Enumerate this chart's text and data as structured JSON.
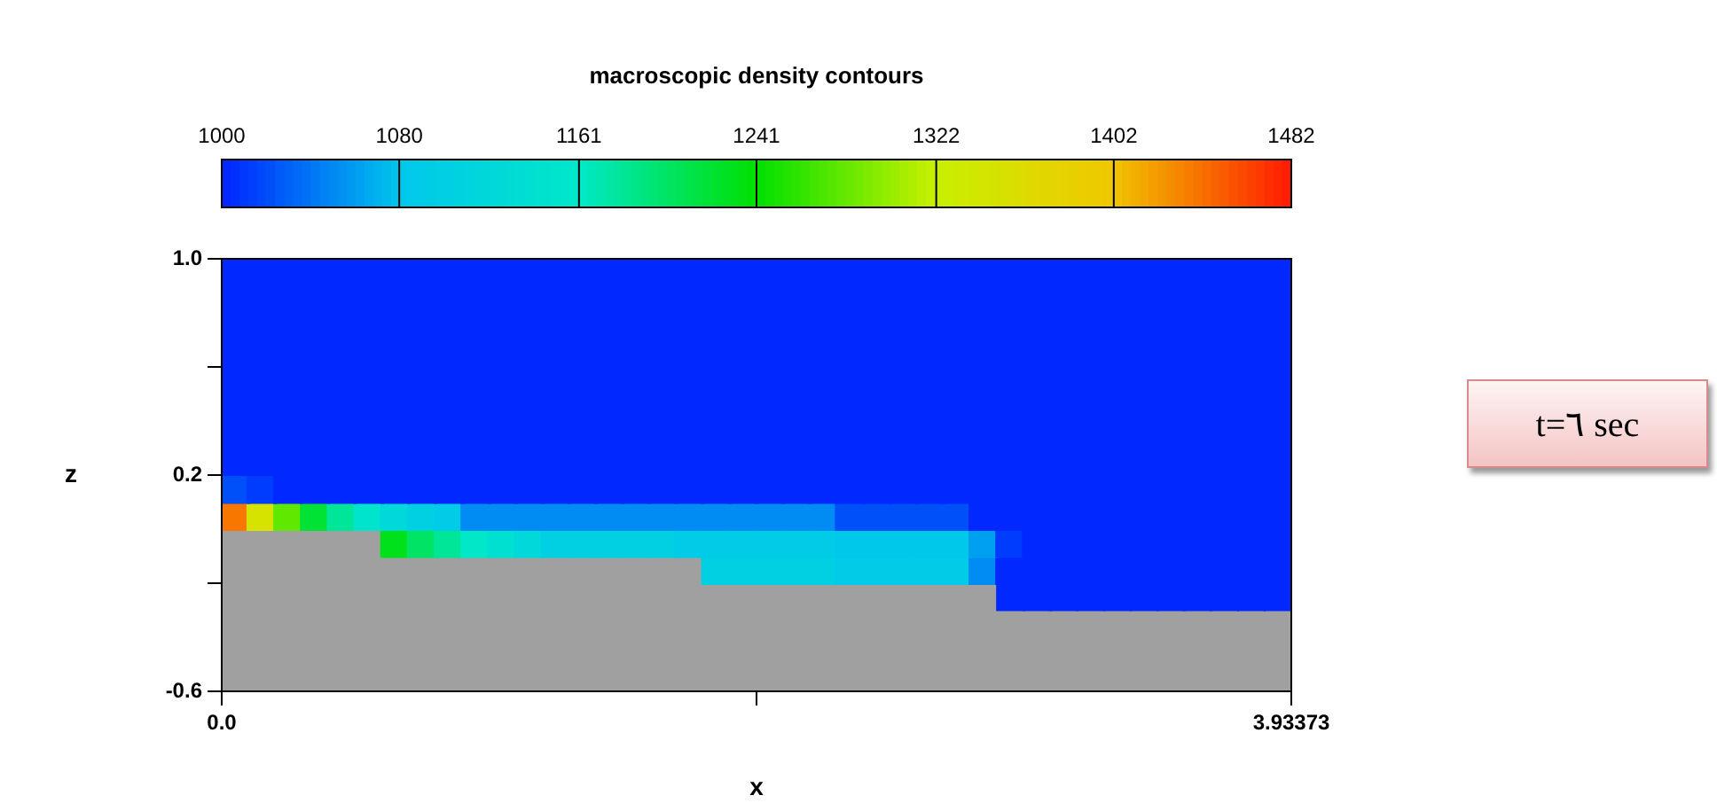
{
  "chart_data": {
    "type": "scatter",
    "title": "macroscopic density contours",
    "xlabel": "x",
    "ylabel": "z",
    "marker": "square",
    "x": [
      0.0492,
      0.1475,
      0.2459,
      0.3442,
      0.4426,
      0.5409,
      0.6393,
      0.7376,
      0.836,
      0.9343,
      1.0326,
      1.131,
      1.2293,
      1.3277,
      1.426,
      1.5244,
      1.6227,
      1.7211,
      1.8194,
      1.9178,
      2.0161,
      2.1145,
      2.2128,
      2.3112,
      2.4095,
      2.5079,
      2.6062,
      2.7046,
      2.8029,
      2.9013,
      2.9996,
      3.098,
      3.1963,
      3.2947,
      3.393,
      3.4914,
      3.5897,
      3.688,
      3.7864,
      3.8847
    ],
    "series": [
      {
        "values": [
          0.95,
          0.95,
          0.95,
          0.95,
          0.95,
          0.95,
          0.95,
          0.95,
          0.95,
          0.95,
          0.95,
          0.95,
          0.95,
          0.95,
          0.95,
          0.95,
          0.95,
          0.95,
          0.95,
          0.95,
          0.95,
          0.95,
          0.95,
          0.95,
          0.95,
          0.95,
          0.95,
          0.95,
          0.95,
          0.95,
          0.95,
          0.95,
          0.95,
          0.95,
          0.95,
          0.95,
          0.95,
          0.95,
          0.95,
          0.95
        ],
        "cvalues": [
          1000,
          1000,
          1000,
          1000,
          1000,
          1000,
          1000,
          1000,
          1000,
          1000,
          1000,
          1000,
          1000,
          1000,
          1000,
          1000,
          1000,
          1000,
          1000,
          1000,
          1000,
          1000,
          1000,
          1000,
          1000,
          1000,
          1000,
          1000,
          1000,
          1000,
          1000,
          1000,
          1000,
          1000,
          1000,
          1000,
          1000,
          1000,
          1000,
          1000
        ]
      },
      {
        "values": [
          0.85,
          0.85,
          0.85,
          0.85,
          0.85,
          0.85,
          0.85,
          0.85,
          0.85,
          0.85,
          0.85,
          0.85,
          0.85,
          0.85,
          0.85,
          0.85,
          0.85,
          0.85,
          0.85,
          0.85,
          0.85,
          0.85,
          0.85,
          0.85,
          0.85,
          0.85,
          0.85,
          0.85,
          0.85,
          0.85,
          0.85,
          0.85,
          0.85,
          0.85,
          0.85,
          0.85,
          0.85,
          0.85,
          0.85,
          0.85
        ],
        "cvalues": [
          1000,
          1000,
          1000,
          1000,
          1000,
          1000,
          1000,
          1000,
          1000,
          1000,
          1000,
          1000,
          1000,
          1000,
          1000,
          1000,
          1000,
          1000,
          1000,
          1000,
          1000,
          1000,
          1000,
          1000,
          1000,
          1000,
          1000,
          1000,
          1000,
          1000,
          1000,
          1000,
          1000,
          1000,
          1000,
          1000,
          1000,
          1000,
          1000,
          1000
        ]
      },
      {
        "values": [
          0.75,
          0.75,
          0.75,
          0.75,
          0.75,
          0.75,
          0.75,
          0.75,
          0.75,
          0.75,
          0.75,
          0.75,
          0.75,
          0.75,
          0.75,
          0.75,
          0.75,
          0.75,
          0.75,
          0.75,
          0.75,
          0.75,
          0.75,
          0.75,
          0.75,
          0.75,
          0.75,
          0.75,
          0.75,
          0.75,
          0.75,
          0.75,
          0.75,
          0.75,
          0.75,
          0.75,
          0.75,
          0.75,
          0.75,
          0.75
        ],
        "cvalues": [
          1000,
          1000,
          1000,
          1000,
          1000,
          1000,
          1000,
          1000,
          1000,
          1000,
          1000,
          1000,
          1000,
          1000,
          1000,
          1000,
          1000,
          1000,
          1000,
          1000,
          1000,
          1000,
          1000,
          1000,
          1000,
          1000,
          1000,
          1000,
          1000,
          1000,
          1000,
          1000,
          1000,
          1000,
          1000,
          1000,
          1000,
          1000,
          1000,
          1000
        ]
      },
      {
        "values": [
          0.65,
          0.65,
          0.65,
          0.65,
          0.65,
          0.65,
          0.65,
          0.65,
          0.65,
          0.65,
          0.65,
          0.65,
          0.65,
          0.65,
          0.65,
          0.65,
          0.65,
          0.65,
          0.65,
          0.65,
          0.65,
          0.65,
          0.65,
          0.65,
          0.65,
          0.65,
          0.65,
          0.65,
          0.65,
          0.65,
          0.65,
          0.65,
          0.65,
          0.65,
          0.65,
          0.65,
          0.65,
          0.65,
          0.65,
          0.65
        ],
        "cvalues": [
          1000,
          1000,
          1000,
          1000,
          1000,
          1000,
          1000,
          1000,
          1000,
          1000,
          1000,
          1000,
          1000,
          1000,
          1000,
          1000,
          1000,
          1000,
          1000,
          1000,
          1000,
          1000,
          1000,
          1000,
          1000,
          1000,
          1000,
          1000,
          1000,
          1000,
          1000,
          1000,
          1000,
          1000,
          1000,
          1000,
          1000,
          1000,
          1000,
          1000
        ]
      },
      {
        "values": [
          0.55,
          0.55,
          0.55,
          0.55,
          0.55,
          0.55,
          0.55,
          0.55,
          0.55,
          0.55,
          0.55,
          0.55,
          0.55,
          0.55,
          0.55,
          0.55,
          0.55,
          0.55,
          0.55,
          0.55,
          0.55,
          0.55,
          0.55,
          0.55,
          0.55,
          0.55,
          0.55,
          0.55,
          0.55,
          0.55,
          0.55,
          0.55,
          0.55,
          0.55,
          0.55,
          0.55,
          0.55,
          0.55,
          0.55,
          0.55
        ],
        "cvalues": [
          1000,
          1000,
          1000,
          1000,
          1000,
          1000,
          1000,
          1000,
          1000,
          1000,
          1000,
          1000,
          1000,
          1000,
          1000,
          1000,
          1000,
          1000,
          1000,
          1000,
          1000,
          1000,
          1000,
          1000,
          1000,
          1000,
          1000,
          1000,
          1000,
          1000,
          1000,
          1000,
          1000,
          1000,
          1000,
          1000,
          1000,
          1000,
          1000,
          1000
        ]
      },
      {
        "values": [
          0.45,
          0.45,
          0.45,
          0.45,
          0.45,
          0.45,
          0.45,
          0.45,
          0.45,
          0.45,
          0.45,
          0.45,
          0.45,
          0.45,
          0.45,
          0.45,
          0.45,
          0.45,
          0.45,
          0.45,
          0.45,
          0.45,
          0.45,
          0.45,
          0.45,
          0.45,
          0.45,
          0.45,
          0.45,
          0.45,
          0.45,
          0.45,
          0.45,
          0.45,
          0.45,
          0.45,
          0.45,
          0.45,
          0.45,
          0.45
        ],
        "cvalues": [
          1000,
          1000,
          1000,
          1000,
          1000,
          1000,
          1000,
          1000,
          1000,
          1000,
          1000,
          1000,
          1000,
          1000,
          1000,
          1000,
          1000,
          1000,
          1000,
          1000,
          1000,
          1000,
          1000,
          1000,
          1000,
          1000,
          1000,
          1000,
          1000,
          1000,
          1000,
          1000,
          1000,
          1000,
          1000,
          1000,
          1000,
          1000,
          1000,
          1000
        ]
      },
      {
        "values": [
          0.35,
          0.35,
          0.35,
          0.35,
          0.35,
          0.35,
          0.35,
          0.35,
          0.35,
          0.35,
          0.35,
          0.35,
          0.35,
          0.35,
          0.35,
          0.35,
          0.35,
          0.35,
          0.35,
          0.35,
          0.35,
          0.35,
          0.35,
          0.35,
          0.35,
          0.35,
          0.35,
          0.35,
          0.35,
          0.35,
          0.35,
          0.35,
          0.35,
          0.35,
          0.35,
          0.35,
          0.35,
          0.35,
          0.35,
          0.35
        ],
        "cvalues": [
          1000,
          1000,
          1000,
          1000,
          1000,
          1000,
          1000,
          1000,
          1000,
          1000,
          1000,
          1000,
          1000,
          1000,
          1000,
          1000,
          1000,
          1000,
          1000,
          1000,
          1000,
          1000,
          1000,
          1000,
          1000,
          1000,
          1000,
          1000,
          1000,
          1000,
          1000,
          1000,
          1000,
          1000,
          1000,
          1000,
          1000,
          1000,
          1000,
          1000
        ]
      },
      {
        "values": [
          0.25,
          0.25,
          0.25,
          0.25,
          0.25,
          0.25,
          0.25,
          0.25,
          0.25,
          0.25,
          0.25,
          0.25,
          0.25,
          0.25,
          0.25,
          0.25,
          0.25,
          0.25,
          0.25,
          0.25,
          0.25,
          0.25,
          0.25,
          0.25,
          0.25,
          0.25,
          0.25,
          0.25,
          0.25,
          0.25,
          0.25,
          0.25,
          0.25,
          0.25,
          0.25,
          0.25,
          0.25,
          0.25,
          0.25,
          0.25
        ],
        "cvalues": [
          1000,
          1000,
          1000,
          1000,
          1000,
          1000,
          1000,
          1000,
          1000,
          1000,
          1000,
          1000,
          1000,
          1000,
          1000,
          1000,
          1000,
          1000,
          1000,
          1000,
          1000,
          1000,
          1000,
          1000,
          1000,
          1000,
          1000,
          1000,
          1000,
          1000,
          1000,
          1000,
          1000,
          1000,
          1000,
          1000,
          1000,
          1000,
          1000,
          1000
        ]
      },
      {
        "values": [
          0.15,
          0.15,
          0.15,
          0.15,
          0.15,
          0.15,
          0.15,
          0.15,
          0.15,
          0.15,
          0.15,
          0.15,
          0.15,
          0.15,
          0.15,
          0.15,
          0.15,
          0.15,
          0.15,
          0.15,
          0.15,
          0.15,
          0.15,
          0.15,
          0.15,
          0.15,
          0.15,
          0.15,
          0.15,
          0.15,
          0.15,
          0.15,
          0.15,
          0.15,
          0.15,
          0.15,
          0.15,
          0.15,
          0.15,
          0.15
        ],
        "colors": [
          "#0050fa",
          "#003cfd",
          "#0028ff",
          "#0028ff",
          "#0028ff",
          "#0028ff",
          "#0028ff",
          "#0028ff",
          "#0028ff",
          "#0028ff",
          "#0028ff",
          "#0028ff",
          "#0028ff",
          "#0028ff",
          "#0028ff",
          "#0028ff",
          "#0028ff",
          "#0028ff",
          "#0028ff",
          "#0028ff",
          "#0028ff",
          "#0028ff",
          "#0028ff",
          "#0028ff",
          "#0028ff",
          "#0028ff",
          "#0028ff",
          "#0028ff",
          "#0028ff",
          "#0028ff",
          "#0028ff",
          "#0028ff",
          "#0028ff",
          "#0028ff",
          "#0028ff",
          "#0028ff",
          "#0028ff",
          "#0028ff",
          "#0028ff",
          "#0028ff"
        ],
        "cvalues": [
          1020,
          1010,
          1000,
          1000,
          1000,
          1000,
          1000,
          1000,
          1000,
          1000,
          1000,
          1000,
          1000,
          1000,
          1000,
          1000,
          1000,
          1000,
          1000,
          1000,
          1000,
          1000,
          1000,
          1000,
          1000,
          1000,
          1000,
          1000,
          1000,
          1000,
          1000,
          1000,
          1000,
          1000,
          1000,
          1000,
          1000,
          1000,
          1000,
          1000
        ]
      },
      {
        "values": [
          0.05,
          0.05,
          0.05,
          0.05,
          0.05,
          0.05,
          0.05,
          0.05,
          0.05,
          0.05,
          0.05,
          0.05,
          0.05,
          0.05,
          0.05,
          0.05,
          0.05,
          0.05,
          0.05,
          0.05,
          0.05,
          0.05,
          0.05,
          0.05,
          0.05,
          0.05,
          0.05,
          0.05,
          0.05,
          0.05,
          0.05,
          0.05,
          0.05,
          0.05,
          0.05,
          0.05,
          0.05,
          0.05,
          0.05,
          0.05
        ],
        "colors": [
          "#f77700",
          "#d6e200",
          "#61e800",
          "#00e234",
          "#00e698",
          "#00e4cd",
          "#00d8da",
          "#00d0e2",
          "#00cce7",
          "#008cf3",
          "#008cf3",
          "#008cf3",
          "#008cf3",
          "#008cf3",
          "#008cf3",
          "#008cf3",
          "#008cf3",
          "#008cf3",
          "#008cf3",
          "#008cf3",
          "#008cf3",
          "#008cf3",
          "#008cf3",
          "#0050fa",
          "#0050fa",
          "#0050fa",
          "#0050fa",
          "#0050fa",
          "#0028ff",
          "#0028ff",
          "#0028ff",
          "#0028ff",
          "#0028ff",
          "#0028ff",
          "#0028ff",
          "#0028ff",
          "#0028ff",
          "#0028ff",
          "#0028ff",
          "#0028ff"
        ],
        "cvalues": [
          1440,
          1350,
          1280,
          1220,
          1180,
          1150,
          1120,
          1100,
          1090,
          1050,
          1050,
          1050,
          1050,
          1050,
          1050,
          1050,
          1050,
          1050,
          1050,
          1050,
          1050,
          1050,
          1050,
          1020,
          1020,
          1020,
          1020,
          1020,
          1000,
          1000,
          1000,
          1000,
          1000,
          1000,
          1000,
          1000,
          1000,
          1000,
          1000,
          1000
        ]
      },
      {
        "values": [
          null,
          null,
          null,
          null,
          null,
          null,
          -0.05,
          -0.05,
          -0.05,
          -0.05,
          -0.05,
          -0.05,
          -0.05,
          -0.05,
          -0.05,
          -0.05,
          -0.05,
          -0.05,
          -0.05,
          -0.05,
          -0.05,
          -0.05,
          -0.05,
          -0.05,
          -0.05,
          -0.05,
          -0.05,
          -0.05,
          -0.05,
          -0.05,
          -0.05,
          -0.05,
          -0.05,
          -0.05,
          -0.05,
          -0.05,
          -0.05,
          -0.05,
          -0.05,
          -0.05
        ],
        "colors": [
          null,
          null,
          null,
          null,
          null,
          null,
          "#00e11b",
          "#00e466",
          "#00e698",
          "#00e8c8",
          "#00e0d1",
          "#00d8da",
          "#00d0e2",
          "#00d0e2",
          "#00d0e2",
          "#00d0e2",
          "#00d0e2",
          "#00cce7",
          "#00cce7",
          "#00cce7",
          "#00cce7",
          "#00cce7",
          "#00cce7",
          "#00c8eb",
          "#00c8eb",
          "#00c8eb",
          "#00c8eb",
          "#00c8eb",
          "#00a0f0",
          "#003cfd",
          "#0028ff",
          "#0028ff",
          "#0028ff",
          "#0028ff",
          "#0028ff",
          "#0028ff",
          "#0028ff",
          "#0028ff",
          "#0028ff",
          "#0028ff"
        ],
        "cvalues": [
          null,
          null,
          null,
          null,
          null,
          null,
          1230,
          1200,
          1180,
          1160,
          1140,
          1120,
          1100,
          1100,
          1100,
          1100,
          1100,
          1090,
          1090,
          1090,
          1090,
          1090,
          1090,
          1080,
          1080,
          1080,
          1080,
          1080,
          1060,
          1010,
          1000,
          1000,
          1000,
          1000,
          1000,
          1000,
          1000,
          1000,
          1000,
          1000
        ]
      },
      {
        "values": [
          null,
          null,
          null,
          null,
          null,
          null,
          null,
          null,
          null,
          null,
          null,
          null,
          null,
          null,
          null,
          null,
          null,
          null,
          -0.15,
          -0.15,
          -0.15,
          -0.15,
          -0.15,
          -0.15,
          -0.15,
          -0.15,
          -0.15,
          -0.15,
          -0.15,
          -0.15,
          -0.15,
          -0.15,
          -0.15,
          -0.15,
          -0.15,
          -0.15,
          -0.15,
          -0.15,
          -0.15,
          -0.15
        ],
        "colors": [
          null,
          null,
          null,
          null,
          null,
          null,
          null,
          null,
          null,
          null,
          null,
          null,
          null,
          null,
          null,
          null,
          null,
          null,
          "#00d0e2",
          "#00d0e2",
          "#00d0e2",
          "#00d0e2",
          "#00d0e2",
          "#00cce7",
          "#00cce7",
          "#00cce7",
          "#00cce7",
          "#00cce7",
          "#008cf3",
          "#0028ff",
          "#0028ff",
          "#0028ff",
          "#0028ff",
          "#0028ff",
          "#0028ff",
          "#0028ff",
          "#0028ff",
          "#0028ff",
          "#0028ff",
          "#0028ff"
        ],
        "cvalues": [
          null,
          null,
          null,
          null,
          null,
          null,
          null,
          null,
          null,
          null,
          null,
          null,
          null,
          null,
          null,
          null,
          null,
          null,
          1100,
          1100,
          1100,
          1100,
          1100,
          1090,
          1090,
          1090,
          1090,
          1090,
          1050,
          1000,
          1000,
          1000,
          1000,
          1000,
          1000,
          1000,
          1000,
          1000,
          1000,
          1000
        ]
      },
      {
        "values": [
          null,
          null,
          null,
          null,
          null,
          null,
          null,
          null,
          null,
          null,
          null,
          null,
          null,
          null,
          null,
          null,
          null,
          null,
          null,
          null,
          null,
          null,
          null,
          null,
          null,
          null,
          null,
          null,
          null,
          -0.25,
          -0.25,
          -0.25,
          -0.25,
          -0.25,
          -0.25,
          -0.25,
          -0.25,
          -0.25,
          -0.25,
          -0.25
        ],
        "cvalues": [
          null,
          null,
          null,
          null,
          null,
          null,
          null,
          null,
          null,
          null,
          null,
          null,
          null,
          null,
          null,
          null,
          null,
          null,
          null,
          null,
          null,
          null,
          null,
          null,
          null,
          null,
          null,
          null,
          null,
          1000,
          1000,
          1000,
          1000,
          1000,
          1000,
          1000,
          1000,
          1000,
          1000,
          1000
        ]
      }
    ],
    "clim": [
      1000,
      1482
    ],
    "cticks": [
      1000,
      1080,
      1161,
      1241,
      1322,
      1402,
      1482
    ],
    "xlim": [
      0,
      3.93373
    ],
    "xticks": [
      {
        "value": 0,
        "label": "0.0"
      },
      {
        "value": 1.966865,
        "label": null
      },
      3.93373
    ],
    "ylim": [
      -0.6,
      1
    ],
    "yticks": [
      {
        "value": 1,
        "label": "1.0"
      },
      {
        "value": 0.6,
        "label": null
      },
      0.2,
      {
        "value": -0.2,
        "label": null
      },
      -0.6
    ],
    "annotations": [
      "t=٦ sec"
    ]
  }
}
